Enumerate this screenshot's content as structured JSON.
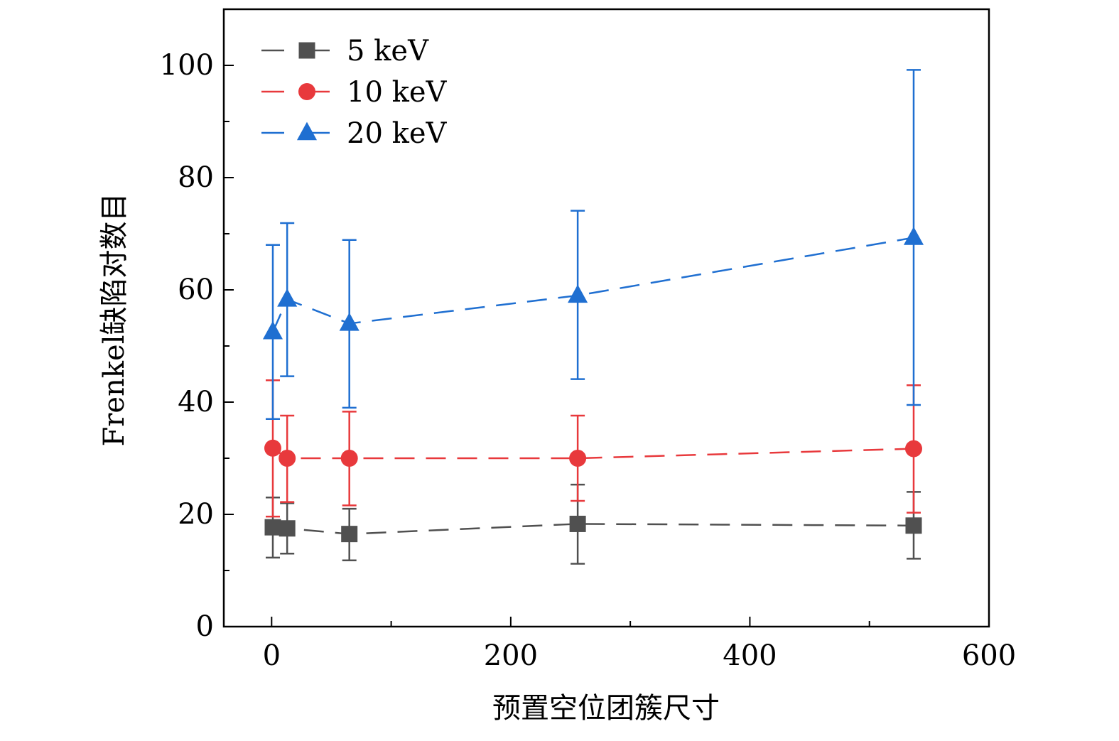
{
  "chart_data": {
    "type": "scatter",
    "xlabel": "预置空位团簇尺寸",
    "ylabel": "Frenkel缺陷对数目",
    "xlim": [
      -40,
      600
    ],
    "ylim": [
      0,
      110
    ],
    "xticks": [
      0,
      200,
      400,
      600
    ],
    "xticks_minor": [
      100,
      300,
      500
    ],
    "yticks": [
      0,
      20,
      40,
      60,
      80,
      100
    ],
    "yticks_minor": [
      10,
      30,
      50,
      70,
      90
    ],
    "xtick_labels": [
      "0",
      "200",
      "400",
      "600"
    ],
    "ytick_labels": [
      "0",
      "20",
      "40",
      "60",
      "80",
      "100"
    ],
    "legend_position": "top-left",
    "series": [
      {
        "name": "5 keV",
        "color": "#505050",
        "marker": "square",
        "x": [
          1,
          13,
          65,
          256,
          537
        ],
        "values": [
          17.7,
          17.5,
          16.5,
          18.3,
          18.0
        ],
        "err_low": [
          12.3,
          13.0,
          11.8,
          11.2,
          12.1
        ],
        "err_high": [
          23.0,
          22.0,
          21.0,
          25.3,
          24.0
        ]
      },
      {
        "name": "10 keV",
        "color": "#e8393c",
        "marker": "circle",
        "x": [
          1,
          13,
          65,
          256,
          537
        ],
        "values": [
          31.8,
          30.0,
          30.0,
          30.0,
          31.7
        ],
        "err_low": [
          19.6,
          22.2,
          21.6,
          22.4,
          20.3
        ],
        "err_high": [
          43.9,
          37.6,
          38.3,
          37.6,
          43.0
        ]
      },
      {
        "name": "20 keV",
        "color": "#1f6fd1",
        "marker": "triangle",
        "x": [
          1,
          13,
          65,
          256,
          537
        ],
        "values": [
          52.5,
          58.3,
          54.0,
          59.0,
          69.3
        ],
        "err_low": [
          37.0,
          44.6,
          39.0,
          44.1,
          39.5
        ],
        "err_high": [
          68.0,
          71.9,
          68.9,
          74.1,
          99.2
        ]
      }
    ]
  }
}
